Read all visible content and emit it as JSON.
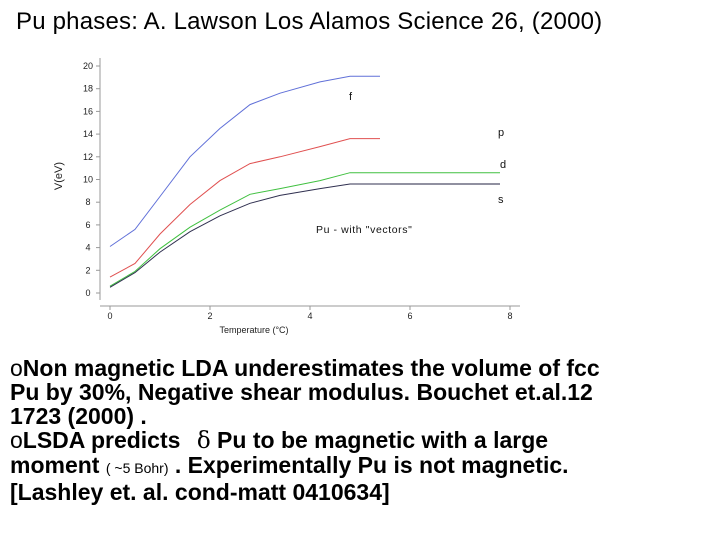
{
  "slide": {
    "title": "Pu  phases: A. Lawson  Los Alamos Science 26, (2000)"
  },
  "bullets": [
    {
      "mark": "o",
      "line1": "Non magnetic LDA underestimates the volume of fcc",
      "line2": "Pu by 30%, Negative shear modulus.  Bouchet et.al.12",
      "line3": "1723 (2000) ."
    },
    {
      "mark": "o",
      "line1_a": "LSDA predicts ",
      "line1_delta": "δ",
      "line1_b": " Pu to be magnetic with a  large",
      "line2_a": "moment ",
      "line2_small": "( ~5 Bohr)",
      "line2_b": " . Experimentally Pu is not magnetic.",
      "line3": "[Lashley et. al. cond-matt 0410634]"
    }
  ],
  "chart_data": {
    "type": "line",
    "xlabel": "Temperature (°C)",
    "ylabel": "V(eV)",
    "xlim": [
      0,
      8
    ],
    "ylim": [
      0,
      20
    ],
    "x_ticks": [
      0,
      2,
      4,
      6,
      8
    ],
    "y_ticks": [
      0,
      2,
      4,
      6,
      8,
      10,
      12,
      14,
      16,
      18,
      20
    ],
    "annotation": "Pu - with \"vectors\"",
    "series": [
      {
        "name": "f",
        "color": "#6070d8",
        "x": [
          0,
          0.5,
          1,
          1.6,
          2.2,
          2.8,
          3.4,
          4.2,
          4.8,
          5.4
        ],
        "y": [
          4.1,
          5.6,
          8.5,
          12.0,
          14.5,
          16.6,
          17.6,
          18.6,
          19.1,
          19.1
        ]
      },
      {
        "name": "p",
        "color": "#e05050",
        "x": [
          0,
          0.5,
          1,
          1.6,
          2.2,
          2.8,
          3.4,
          4.2,
          4.8,
          5.4
        ],
        "y": [
          1.4,
          2.6,
          5.2,
          7.8,
          9.9,
          11.4,
          12.0,
          12.9,
          13.6,
          13.6
        ]
      },
      {
        "name": "d",
        "color": "#40c040",
        "x": [
          0,
          0.5,
          1,
          1.6,
          2.2,
          2.8,
          3.4,
          4.2,
          4.8,
          6.0,
          7.8
        ],
        "y": [
          0.6,
          1.9,
          3.9,
          5.8,
          7.3,
          8.7,
          9.2,
          9.9,
          10.6,
          10.6,
          10.6
        ]
      },
      {
        "name": "s",
        "color": "#303050",
        "x": [
          0,
          0.5,
          1,
          1.6,
          2.2,
          2.8,
          3.4,
          4.2,
          4.8,
          5.8
        ],
        "y": [
          0.5,
          1.8,
          3.6,
          5.4,
          6.8,
          7.9,
          8.6,
          9.2,
          9.6,
          9.6
        ]
      },
      {
        "name": "",
        "color": "#202040",
        "x": [
          5.6,
          7.8
        ],
        "y": [
          9.6,
          9.6
        ]
      }
    ]
  }
}
